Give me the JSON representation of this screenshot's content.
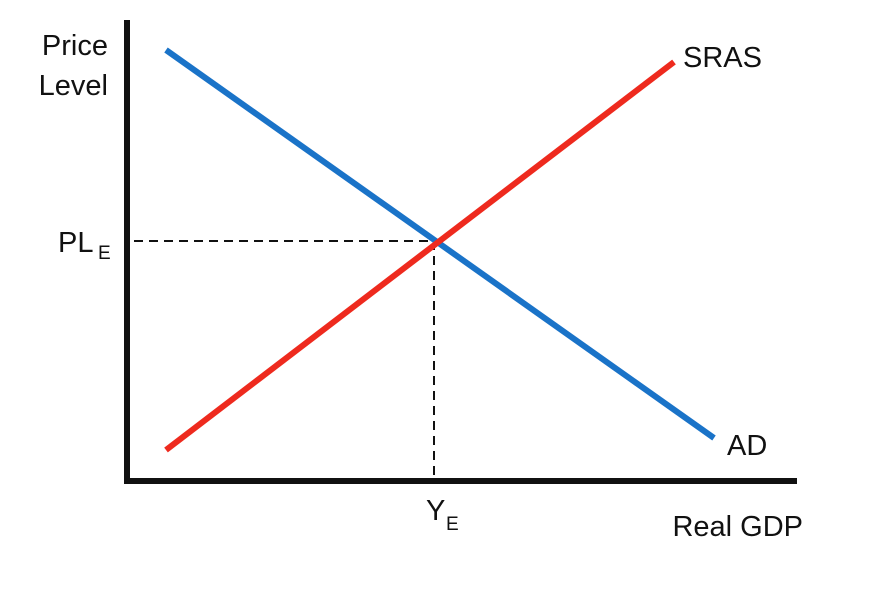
{
  "diagram": {
    "type": "economics-ad-sras",
    "axes": {
      "y_label_line1": "Price",
      "y_label_line2": "Level",
      "x_label": "Real GDP",
      "color": "#111111"
    },
    "curves": {
      "ad": {
        "label": "AD",
        "color": "#1a73c8"
      },
      "sras": {
        "label": "SRAS",
        "color": "#ee2a1e"
      }
    },
    "equilibrium": {
      "price_label": "PL",
      "price_subscript": "E",
      "output_label": "Y",
      "output_subscript": "E",
      "guide_color": "#111111"
    }
  }
}
